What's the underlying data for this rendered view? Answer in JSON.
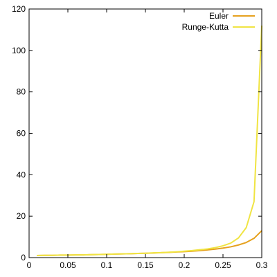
{
  "chart_data": {
    "type": "line",
    "title": "",
    "xlabel": "",
    "ylabel": "",
    "xlim": [
      0,
      0.3
    ],
    "ylim": [
      0,
      120
    ],
    "grid": false,
    "legend_position": "top-right",
    "x_ticks": [
      "0",
      "0.05",
      "0.1",
      "0.15",
      "0.2",
      "0.25",
      "0.3"
    ],
    "y_ticks": [
      "0",
      "20",
      "40",
      "60",
      "80",
      "100",
      "120"
    ],
    "series": [
      {
        "name": "Euler",
        "color": "#e6a11e",
        "x": [
          0.01,
          0.02,
          0.03,
          0.04,
          0.05,
          0.06,
          0.07,
          0.08,
          0.09,
          0.1,
          0.11,
          0.12,
          0.13,
          0.14,
          0.15,
          0.16,
          0.17,
          0.18,
          0.19,
          0.2,
          0.21,
          0.22,
          0.23,
          0.24,
          0.25,
          0.26,
          0.27,
          0.28,
          0.29,
          0.3
        ],
        "y": [
          1.0,
          1.1,
          1.1,
          1.2,
          1.2,
          1.3,
          1.3,
          1.4,
          1.5,
          1.6,
          1.7,
          1.8,
          1.9,
          2.0,
          2.1,
          2.2,
          2.4,
          2.5,
          2.7,
          2.9,
          3.1,
          3.4,
          3.7,
          4.1,
          4.6,
          5.2,
          6.1,
          7.3,
          9.3,
          13.0
        ]
      },
      {
        "name": "Runge-Kutta",
        "color": "#f0e442",
        "x": [
          0.01,
          0.02,
          0.03,
          0.04,
          0.05,
          0.06,
          0.07,
          0.08,
          0.09,
          0.1,
          0.11,
          0.12,
          0.13,
          0.14,
          0.15,
          0.16,
          0.17,
          0.18,
          0.19,
          0.2,
          0.21,
          0.22,
          0.23,
          0.24,
          0.25,
          0.26,
          0.27,
          0.28,
          0.29,
          0.3
        ],
        "y": [
          1.0,
          1.1,
          1.1,
          1.2,
          1.2,
          1.3,
          1.3,
          1.4,
          1.5,
          1.6,
          1.7,
          1.8,
          1.9,
          2.0,
          2.1,
          2.3,
          2.4,
          2.6,
          2.8,
          3.1,
          3.4,
          3.8,
          4.2,
          4.8,
          5.7,
          7.0,
          9.5,
          14.5,
          27.0,
          112.0
        ]
      }
    ]
  }
}
